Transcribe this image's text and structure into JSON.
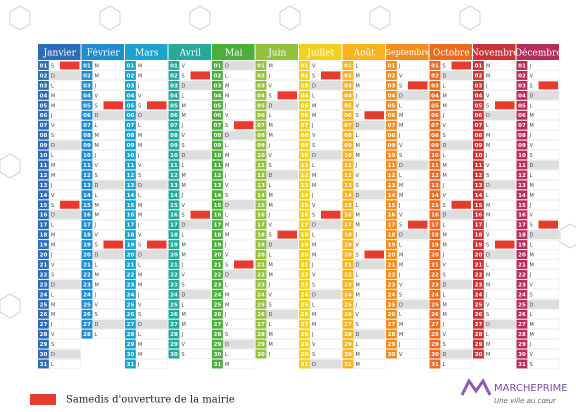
{
  "calendar": {
    "day_numbers": [
      "01",
      "02",
      "03",
      "04",
      "05",
      "06",
      "07",
      "08",
      "09",
      "10",
      "11",
      "12",
      "13",
      "14",
      "15",
      "16",
      "17",
      "18",
      "19",
      "20",
      "21",
      "22",
      "23",
      "24",
      "25",
      "26",
      "27",
      "28",
      "29",
      "30",
      "31"
    ],
    "months": [
      {
        "name": "Janvier",
        "color": "#2d6db5",
        "weekdays": "SDLMMJVSDLMMJVSDLMMJVSDLMMJVSDL",
        "highlighted_days": [
          1,
          15
        ]
      },
      {
        "name": "Février",
        "color": "#1f8ccf",
        "weekdays": "MMJVSDLMMJVSDLMMJVSDLMMJVSDL",
        "highlighted_days": [
          5,
          19
        ]
      },
      {
        "name": "Mars",
        "color": "#1aa3cf",
        "weekdays": "MMJVSDLMMJVSDLMMJVSDLMMJVSDLMMJ",
        "highlighted_days": [
          5,
          19
        ]
      },
      {
        "name": "Avril",
        "color": "#27a99a",
        "weekdays": "VSDLMMJVSDLMMJVSDLMMJVSDLMMJVS",
        "highlighted_days": [
          2,
          16
        ]
      },
      {
        "name": "Mai",
        "color": "#4cae3b",
        "weekdays": "DLMMJVSDLMMJVSDLMMJVSDLMMJVSDLM",
        "highlighted_days": [
          7,
          21
        ]
      },
      {
        "name": "Juin",
        "color": "#93c13e",
        "weekdays": "MJVSDLMMJVSDLMMJVSDLMMJVSDLMMJ",
        "highlighted_days": [
          4,
          18
        ]
      },
      {
        "name": "Juillet",
        "color": "#f0d21c",
        "weekdays": "VSDLMMJVSDLMMJVSDLMMJVSDLMMJVSD",
        "highlighted_days": [
          2,
          16
        ]
      },
      {
        "name": "Août",
        "color": "#f6b31c",
        "weekdays": "LMMJVSDLMMJVSDLMMJVSDLMMJVSDLMM",
        "highlighted_days": [
          6,
          20
        ]
      },
      {
        "name": "Septembre",
        "color": "#f28c1c",
        "weekdays": "JVSDLMMJVSDLMMJVSDLMMJVSDLMMJV",
        "highlighted_days": [
          3,
          17
        ]
      },
      {
        "name": "Octobre",
        "color": "#ec6a1f",
        "weekdays": "SDLMMJVSDLMMJVSDLMMJVSDLMMJVSDL",
        "highlighted_days": [
          1,
          15
        ]
      },
      {
        "name": "Novembre",
        "color": "#c9343a",
        "weekdays": "MMJVSDLMMJVSDLMMJVSDLMMJVSDLMM",
        "highlighted_days": [
          5,
          19
        ]
      },
      {
        "name": "Décembre",
        "color": "#b72d5a",
        "weekdays": "JVSDLMMJVSDLMMJVSDLMMJVSDLMMJVS",
        "highlighted_days": [
          3,
          17
        ]
      }
    ],
    "highlight_color": "#e63b2e"
  },
  "legend": {
    "label": "Samedis d'ouverture de la mairie"
  },
  "logo": {
    "name": "MARCHEPRIME",
    "tagline": "Une ville au cœur"
  }
}
